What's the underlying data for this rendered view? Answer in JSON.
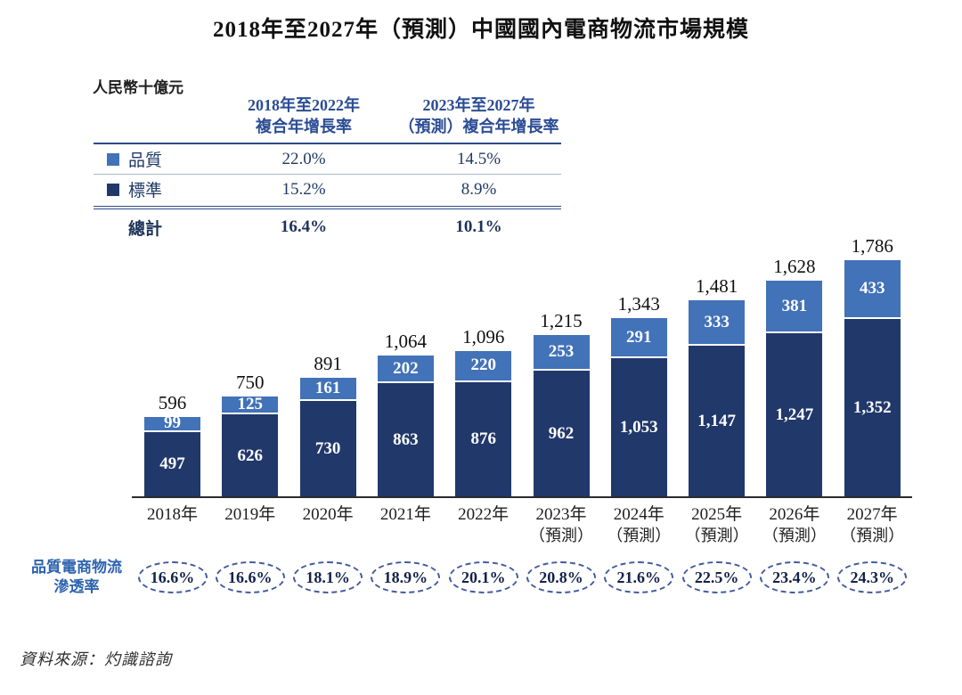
{
  "title": "2018年至2027年（預測）中國國內電商物流市場規模",
  "unit": "人民幣十億元",
  "table": {
    "col1_header_line1": "2018年至2022年",
    "col1_header_line2": "複合年增長率",
    "col2_header_line1": "2023年至2027年",
    "col2_header_line2": "（預測）複合年增長率",
    "rows": [
      {
        "label": "品質",
        "cagr_2018_2022": "22.0%",
        "cagr_2023_2027": "14.5%"
      },
      {
        "label": "標準",
        "cagr_2018_2022": "15.2%",
        "cagr_2023_2027": "8.9%"
      }
    ],
    "total_label": "總計",
    "total_cagr_2018_2022": "16.4%",
    "total_cagr_2023_2027": "10.1%"
  },
  "chart_data": {
    "type": "bar",
    "stacked": true,
    "title": "2018年至2027年（預測）中國國內電商物流市場規模",
    "ylabel": "人民幣十億元",
    "categories": [
      "2018年",
      "2019年",
      "2020年",
      "2021年",
      "2022年",
      "2023年（預測）",
      "2024年（預測）",
      "2025年（預測）",
      "2026年（預測）",
      "2027年（預測）"
    ],
    "series": [
      {
        "name": "品質",
        "color": "#4272b8",
        "values": [
          99,
          125,
          161,
          202,
          220,
          253,
          291,
          333,
          381,
          433
        ]
      },
      {
        "name": "標準",
        "color": "#21386b",
        "values": [
          497,
          626,
          730,
          863,
          876,
          962,
          1053,
          1147,
          1247,
          1352
        ]
      }
    ],
    "totals": [
      596,
      750,
      891,
      1064,
      1096,
      1215,
      1343,
      1481,
      1628,
      1786
    ],
    "penetration_rate": [
      "16.6%",
      "16.6%",
      "18.1%",
      "18.9%",
      "20.1%",
      "20.8%",
      "21.6%",
      "22.5%",
      "23.4%",
      "24.3%"
    ],
    "legend_position": "table-left",
    "grid": false
  },
  "penetration_label_line1": "品質電商物流",
  "penetration_label_line2": "滲透率",
  "source": "資料來源：灼識諮詢",
  "colors": {
    "quality_light_blue": "#4272b8",
    "standard_dark_navy": "#21386b",
    "table_header_blue": "#2b4c94",
    "oval_dash_blue": "#42599f",
    "penetration_label_blue": "#2d62ae"
  }
}
